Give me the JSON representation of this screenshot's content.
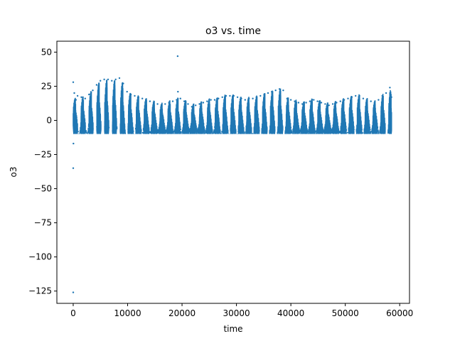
{
  "chart_data": {
    "type": "scatter",
    "title": "o3 vs. time",
    "xlabel": "time",
    "ylabel": "o3",
    "xlim": [
      -3000,
      61800
    ],
    "ylim": [
      -134,
      58
    ],
    "xticks": [
      0,
      10000,
      20000,
      30000,
      40000,
      50000,
      60000
    ],
    "xtick_labels": [
      "0",
      "10000",
      "20000",
      "30000",
      "40000",
      "50000",
      "60000"
    ],
    "yticks": [
      50,
      25,
      0,
      -25,
      -50,
      -75,
      -100,
      -125
    ],
    "ytick_labels": [
      "50",
      "25",
      "0",
      "−25",
      "−50",
      "−75",
      "−100",
      "−125"
    ],
    "grid": false,
    "legend": "none",
    "marker_color": "#1f77b4",
    "series": [
      {
        "x": [
          0,
          100,
          200,
          300,
          400,
          500,
          600,
          0,
          0,
          50,
          19200,
          19250,
          800,
          1500,
          2200,
          2900,
          3600,
          4300,
          5000,
          5700,
          6400,
          7100,
          7800,
          8500,
          9200,
          9900,
          10600,
          11300,
          12000,
          12700,
          13400,
          14100,
          14800,
          15500,
          16200,
          16900,
          17600,
          18300,
          19000,
          19700,
          20400,
          21100,
          21800,
          22500,
          23200,
          23900,
          24600,
          25300,
          26000,
          26700,
          27400,
          28100,
          28800,
          29500,
          30200,
          30900,
          31600,
          32300,
          33000,
          33700,
          34400,
          35100,
          35800,
          36500,
          37200,
          37900,
          38600,
          39300,
          40000,
          40700,
          41400,
          42100,
          42800,
          43500,
          44200,
          44900,
          45600,
          46300,
          47000,
          47700,
          48400,
          49100,
          49800,
          50500,
          51200,
          51900,
          52600,
          53300,
          54000,
          54700,
          55400,
          56100,
          56800,
          57500,
          58200,
          58500
        ],
        "y": [
          28,
          -5,
          20,
          5,
          -8,
          15,
          2,
          -126,
          -35,
          -17,
          47,
          21,
          18,
          17,
          16,
          19,
          22,
          26,
          29,
          30,
          30,
          29,
          30,
          31,
          27,
          21,
          19,
          18,
          17,
          16,
          15,
          14,
          13,
          12,
          11,
          12,
          13,
          14,
          15,
          16,
          14,
          12,
          10,
          11,
          12,
          13,
          14,
          15,
          15,
          16,
          17,
          18,
          18,
          18,
          17,
          16,
          15,
          16,
          16,
          17,
          18,
          19,
          20,
          21,
          22,
          23,
          22,
          16,
          15,
          14,
          13,
          12,
          13,
          14,
          15,
          14,
          13,
          12,
          11,
          12,
          13,
          14,
          15,
          16,
          17,
          18,
          18,
          16,
          15,
          14,
          13,
          15,
          18,
          20,
          24,
          17
        ]
      }
    ]
  }
}
